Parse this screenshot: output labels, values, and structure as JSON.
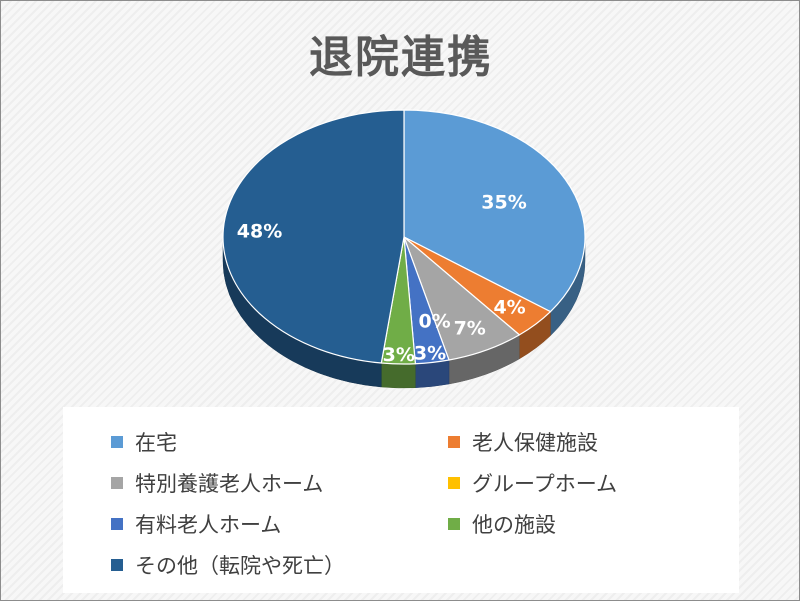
{
  "chart_data": {
    "type": "pie",
    "title": "退院連携",
    "categories": [
      "在宅",
      "老人保健施設",
      "特別養護老人ホーム",
      "グループホーム",
      "有料老人ホーム",
      "他の施設",
      "その他（転院や死亡）"
    ],
    "values": [
      35,
      4,
      7,
      0,
      3,
      3,
      48
    ],
    "data_labels": [
      "35%",
      "4%",
      "7%",
      "0%",
      "3%",
      "3%",
      "48%"
    ],
    "colors": [
      "#5b9bd5",
      "#ed7d31",
      "#a5a5a5",
      "#ffc000",
      "#4472c4",
      "#70ad47",
      "#255e91"
    ],
    "legend_position": "bottom",
    "grid": false
  }
}
